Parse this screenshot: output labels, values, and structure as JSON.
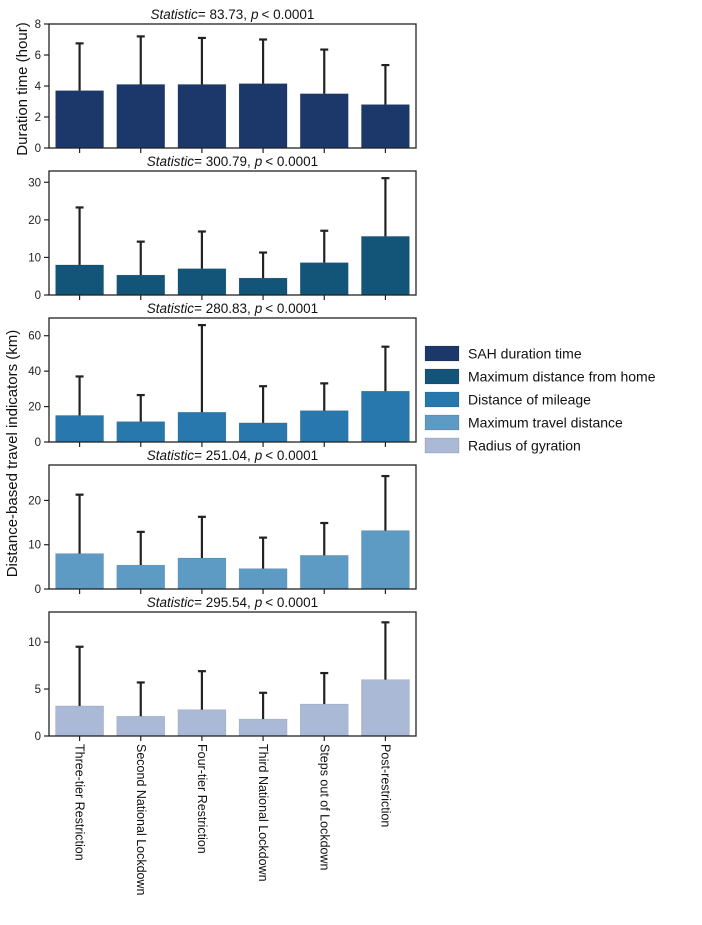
{
  "chart_data": [
    {
      "type": "bar",
      "title": "Statistic = 83.73, p < 0.0001",
      "title_stat_label": "Statistic",
      "title_stat_value": "= 83.73,",
      "title_p_label": "p",
      "title_p_value": "< 0.0001",
      "ylabel": "Duration time (hour)",
      "categories": [
        "Three-tier Restriction",
        "Second National Lockdown",
        "Four-tier Restriction",
        "Third National Lockdown",
        "Steps out of Lockdown",
        "Post-restriction"
      ],
      "series": [
        {
          "name": "SAH duration time",
          "values": [
            3.7,
            4.1,
            4.1,
            4.15,
            3.5,
            2.8
          ],
          "errors": [
            3.05,
            3.1,
            3.0,
            2.85,
            2.85,
            2.55
          ]
        }
      ],
      "ylim": [
        0,
        8
      ],
      "yticks": [
        0,
        2,
        4,
        6,
        8
      ],
      "color": "#1c3769"
    },
    {
      "type": "bar",
      "title": "Statistic = 300.79, p < 0.0001",
      "title_stat_label": "Statistic",
      "title_stat_value": "= 300.79,",
      "title_p_label": "p",
      "title_p_value": "< 0.0001",
      "categories": [
        "Three-tier Restriction",
        "Second National Lockdown",
        "Four-tier Restriction",
        "Third National Lockdown",
        "Steps out of Lockdown",
        "Post-restriction"
      ],
      "series": [
        {
          "name": "Maximum distance from home",
          "values": [
            8.0,
            5.3,
            7.0,
            4.5,
            8.6,
            15.6
          ],
          "errors": [
            15.3,
            8.9,
            9.9,
            6.8,
            8.5,
            15.5
          ]
        }
      ],
      "ylim": [
        0,
        33
      ],
      "yticks": [
        0,
        10,
        20,
        30
      ],
      "color": "#135479"
    },
    {
      "type": "bar",
      "title": "Statistic = 280.83, p < 0.0001",
      "title_stat_label": "Statistic",
      "title_stat_value": "= 280.83,",
      "title_p_label": "p",
      "title_p_value": "< 0.0001",
      "categories": [
        "Three-tier Restriction",
        "Second National Lockdown",
        "Four-tier Restriction",
        "Third National Lockdown",
        "Steps out of Lockdown",
        "Post-restriction"
      ],
      "series": [
        {
          "name": "Distance of mileage",
          "values": [
            15.0,
            11.5,
            16.8,
            10.8,
            17.7,
            28.7
          ],
          "errors": [
            22.0,
            15.0,
            49.2,
            20.7,
            15.4,
            25.1
          ]
        }
      ],
      "ylim": [
        0,
        70
      ],
      "yticks": [
        0,
        20,
        40,
        60
      ],
      "color": "#2878ae"
    },
    {
      "type": "bar",
      "title": "Statistic = 251.04, p < 0.0001",
      "title_stat_label": "Statistic",
      "title_stat_value": "= 251.04,",
      "title_p_label": "p",
      "title_p_value": "< 0.0001",
      "categories": [
        "Three-tier Restriction",
        "Second National Lockdown",
        "Four-tier Restriction",
        "Third National Lockdown",
        "Steps out of Lockdown",
        "Post-restriction"
      ],
      "series": [
        {
          "name": "Maximum travel distance",
          "values": [
            8.0,
            5.4,
            7.0,
            4.6,
            7.6,
            13.2
          ],
          "errors": [
            13.3,
            7.5,
            9.3,
            7.0,
            7.3,
            12.3
          ]
        }
      ],
      "ylim": [
        0,
        28
      ],
      "yticks": [
        0,
        10,
        20
      ],
      "color": "#5e9bc4"
    },
    {
      "type": "bar",
      "title": "Statistic = 295.54, p < 0.0001",
      "title_stat_label": "Statistic",
      "title_stat_value": "= 295.54,",
      "title_p_label": "p",
      "title_p_value": "< 0.0001",
      "categories": [
        "Three-tier Restriction",
        "Second National Lockdown",
        "Four-tier Restriction",
        "Third National Lockdown",
        "Steps out of Lockdown",
        "Post-restriction"
      ],
      "series": [
        {
          "name": "Radius of gyration",
          "values": [
            3.2,
            2.1,
            2.8,
            1.8,
            3.4,
            6.0
          ],
          "errors": [
            6.3,
            3.6,
            4.1,
            2.8,
            3.3,
            6.1
          ]
        }
      ],
      "ylim": [
        0,
        13.2
      ],
      "yticks": [
        0,
        5,
        10
      ],
      "color": "#a9b9d6"
    }
  ],
  "shared_ylabel": "Distance-based travel indicators (km)",
  "legend": {
    "placement": "center-right",
    "items": [
      {
        "label": "SAH duration time",
        "color": "#1c3769"
      },
      {
        "label": "Maximum distance from home",
        "color": "#135479"
      },
      {
        "label": "Distance of mileage",
        "color": "#2878ae"
      },
      {
        "label": "Maximum travel distance",
        "color": "#5e9bc4"
      },
      {
        "label": "Radius of gyration",
        "color": "#a9b9d6"
      }
    ]
  },
  "error_bar_color": "#222222"
}
